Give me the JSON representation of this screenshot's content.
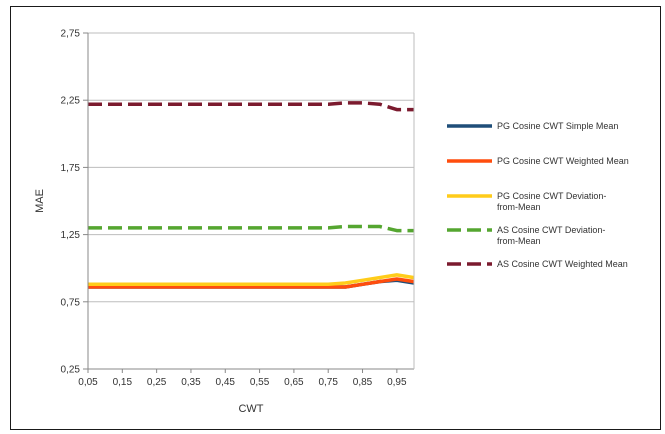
{
  "chart_data": {
    "type": "line",
    "xlabel": "CWT",
    "ylabel": "MAE",
    "x": [
      0.05,
      0.1,
      0.15,
      0.2,
      0.25,
      0.3,
      0.35,
      0.4,
      0.45,
      0.5,
      0.55,
      0.6,
      0.65,
      0.7,
      0.75,
      0.8,
      0.85,
      0.9,
      0.95,
      1.0
    ],
    "x_tick_labels": [
      "0,05",
      "0,15",
      "0,25",
      "0,35",
      "0,45",
      "0,55",
      "0,65",
      "0,75",
      "0,85",
      "0,95"
    ],
    "x_ticks": [
      0.05,
      0.15,
      0.25,
      0.35,
      0.45,
      0.55,
      0.65,
      0.75,
      0.85,
      0.95
    ],
    "xlim": [
      0.05,
      1.0
    ],
    "y_tick_labels": [
      "0,25",
      "0,75",
      "1,25",
      "1,75",
      "2,25",
      "2,75"
    ],
    "y_ticks": [
      0.25,
      0.75,
      1.25,
      1.75,
      2.25,
      2.75
    ],
    "ylim": [
      0.25,
      2.75
    ],
    "grid": "horizontal",
    "legend_position": "right",
    "series": [
      {
        "name": "PG Cosine  CWT Simple Mean",
        "color": "#1f4e79",
        "dash": false,
        "values": [
          0.86,
          0.86,
          0.86,
          0.86,
          0.86,
          0.86,
          0.86,
          0.86,
          0.86,
          0.86,
          0.86,
          0.86,
          0.86,
          0.86,
          0.86,
          0.86,
          0.88,
          0.9,
          0.91,
          0.89
        ]
      },
      {
        "name": "PG Cosine  CWT Weighted Mean",
        "color": "#ff4d0d",
        "dash": false,
        "values": [
          0.86,
          0.86,
          0.86,
          0.86,
          0.86,
          0.86,
          0.86,
          0.86,
          0.86,
          0.86,
          0.86,
          0.86,
          0.86,
          0.86,
          0.86,
          0.86,
          0.88,
          0.9,
          0.92,
          0.9
        ]
      },
      {
        "name": "PG Cosine  CWT Deviation-from-Mean",
        "color": "#ffcc1a",
        "dash": false,
        "values": [
          0.88,
          0.88,
          0.88,
          0.88,
          0.88,
          0.88,
          0.88,
          0.88,
          0.88,
          0.88,
          0.88,
          0.88,
          0.88,
          0.88,
          0.88,
          0.89,
          0.91,
          0.93,
          0.95,
          0.93
        ]
      },
      {
        "name": "AS Cosine  CWT Deviation-from-Mean",
        "color": "#55a630",
        "dash": true,
        "values": [
          1.3,
          1.3,
          1.3,
          1.3,
          1.3,
          1.3,
          1.3,
          1.3,
          1.3,
          1.3,
          1.3,
          1.3,
          1.3,
          1.3,
          1.3,
          1.31,
          1.31,
          1.31,
          1.28,
          1.28
        ]
      },
      {
        "name": "AS Cosine  CWT Weighted Mean",
        "color": "#7b1a2e",
        "dash": true,
        "values": [
          2.22,
          2.22,
          2.22,
          2.22,
          2.22,
          2.22,
          2.22,
          2.22,
          2.22,
          2.22,
          2.22,
          2.22,
          2.22,
          2.22,
          2.22,
          2.23,
          2.23,
          2.22,
          2.18,
          2.18
        ]
      }
    ]
  }
}
